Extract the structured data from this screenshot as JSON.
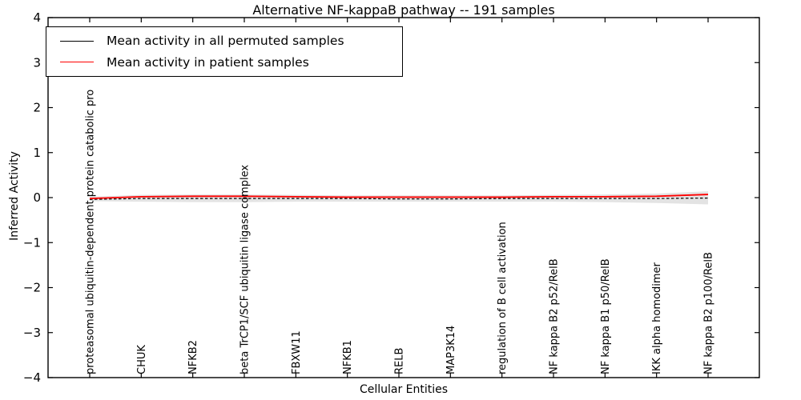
{
  "figure": {
    "title": "Alternative NF-kappaB pathway -- 191 samples",
    "xlabel": "Cellular Entities",
    "ylabel": "Inferred Activity"
  },
  "legend": {
    "entries": [
      {
        "label": "Mean activity in all permuted samples",
        "color": "#000000",
        "style": "solid"
      },
      {
        "label": "Mean activity in patient samples",
        "color": "#ff0000",
        "style": "solid"
      }
    ]
  },
  "chart_data": {
    "type": "line",
    "title": "Alternative NF-kappaB pathway -- 191 samples",
    "xlabel": "Cellular Entities",
    "ylabel": "Inferred Activity",
    "ylim": [
      -4,
      4
    ],
    "yticks": [
      4,
      3,
      2,
      1,
      0,
      -1,
      -2,
      -3,
      -4
    ],
    "grid": false,
    "legend_position": "upper left",
    "categories": [
      "proteasomal ubiquitin-dependent protein catabolic pro",
      "CHUK",
      "NFKB2",
      "beta TrCP1/SCF ubiquitin ligase complex",
      "FBXW11",
      "NFKB1",
      "RELB",
      "MAP3K14",
      "regulation of B cell activation",
      "NF kappa B2 p52/RelB",
      "NF kappa B1 p50/RelB",
      "IKK alpha homodimer",
      "NF kappa B2 p100/RelB"
    ],
    "series": [
      {
        "name": "Mean activity in all permuted samples",
        "color": "#000000",
        "line_style": "dashed",
        "values": [
          -0.04,
          -0.02,
          -0.02,
          -0.02,
          -0.02,
          -0.02,
          -0.03,
          -0.03,
          -0.02,
          -0.02,
          -0.02,
          -0.02,
          -0.01
        ]
      },
      {
        "name": "Mean activity in patient samples",
        "color": "#ff0000",
        "line_style": "solid",
        "values": [
          -0.02,
          0.02,
          0.03,
          0.03,
          0.02,
          0.01,
          0.01,
          0.01,
          0.01,
          0.02,
          0.02,
          0.03,
          0.07
        ]
      }
    ],
    "band": {
      "name": "permuted-sample spread band",
      "color": "#d9d9d9",
      "upper": [
        0.02,
        0.06,
        0.07,
        0.07,
        0.06,
        0.05,
        0.05,
        0.05,
        0.05,
        0.06,
        0.07,
        0.09,
        0.14
      ],
      "lower": [
        -0.08,
        -0.09,
        -0.1,
        -0.1,
        -0.09,
        -0.09,
        -0.09,
        -0.09,
        -0.09,
        -0.09,
        -0.1,
        -0.12,
        -0.15
      ]
    }
  }
}
